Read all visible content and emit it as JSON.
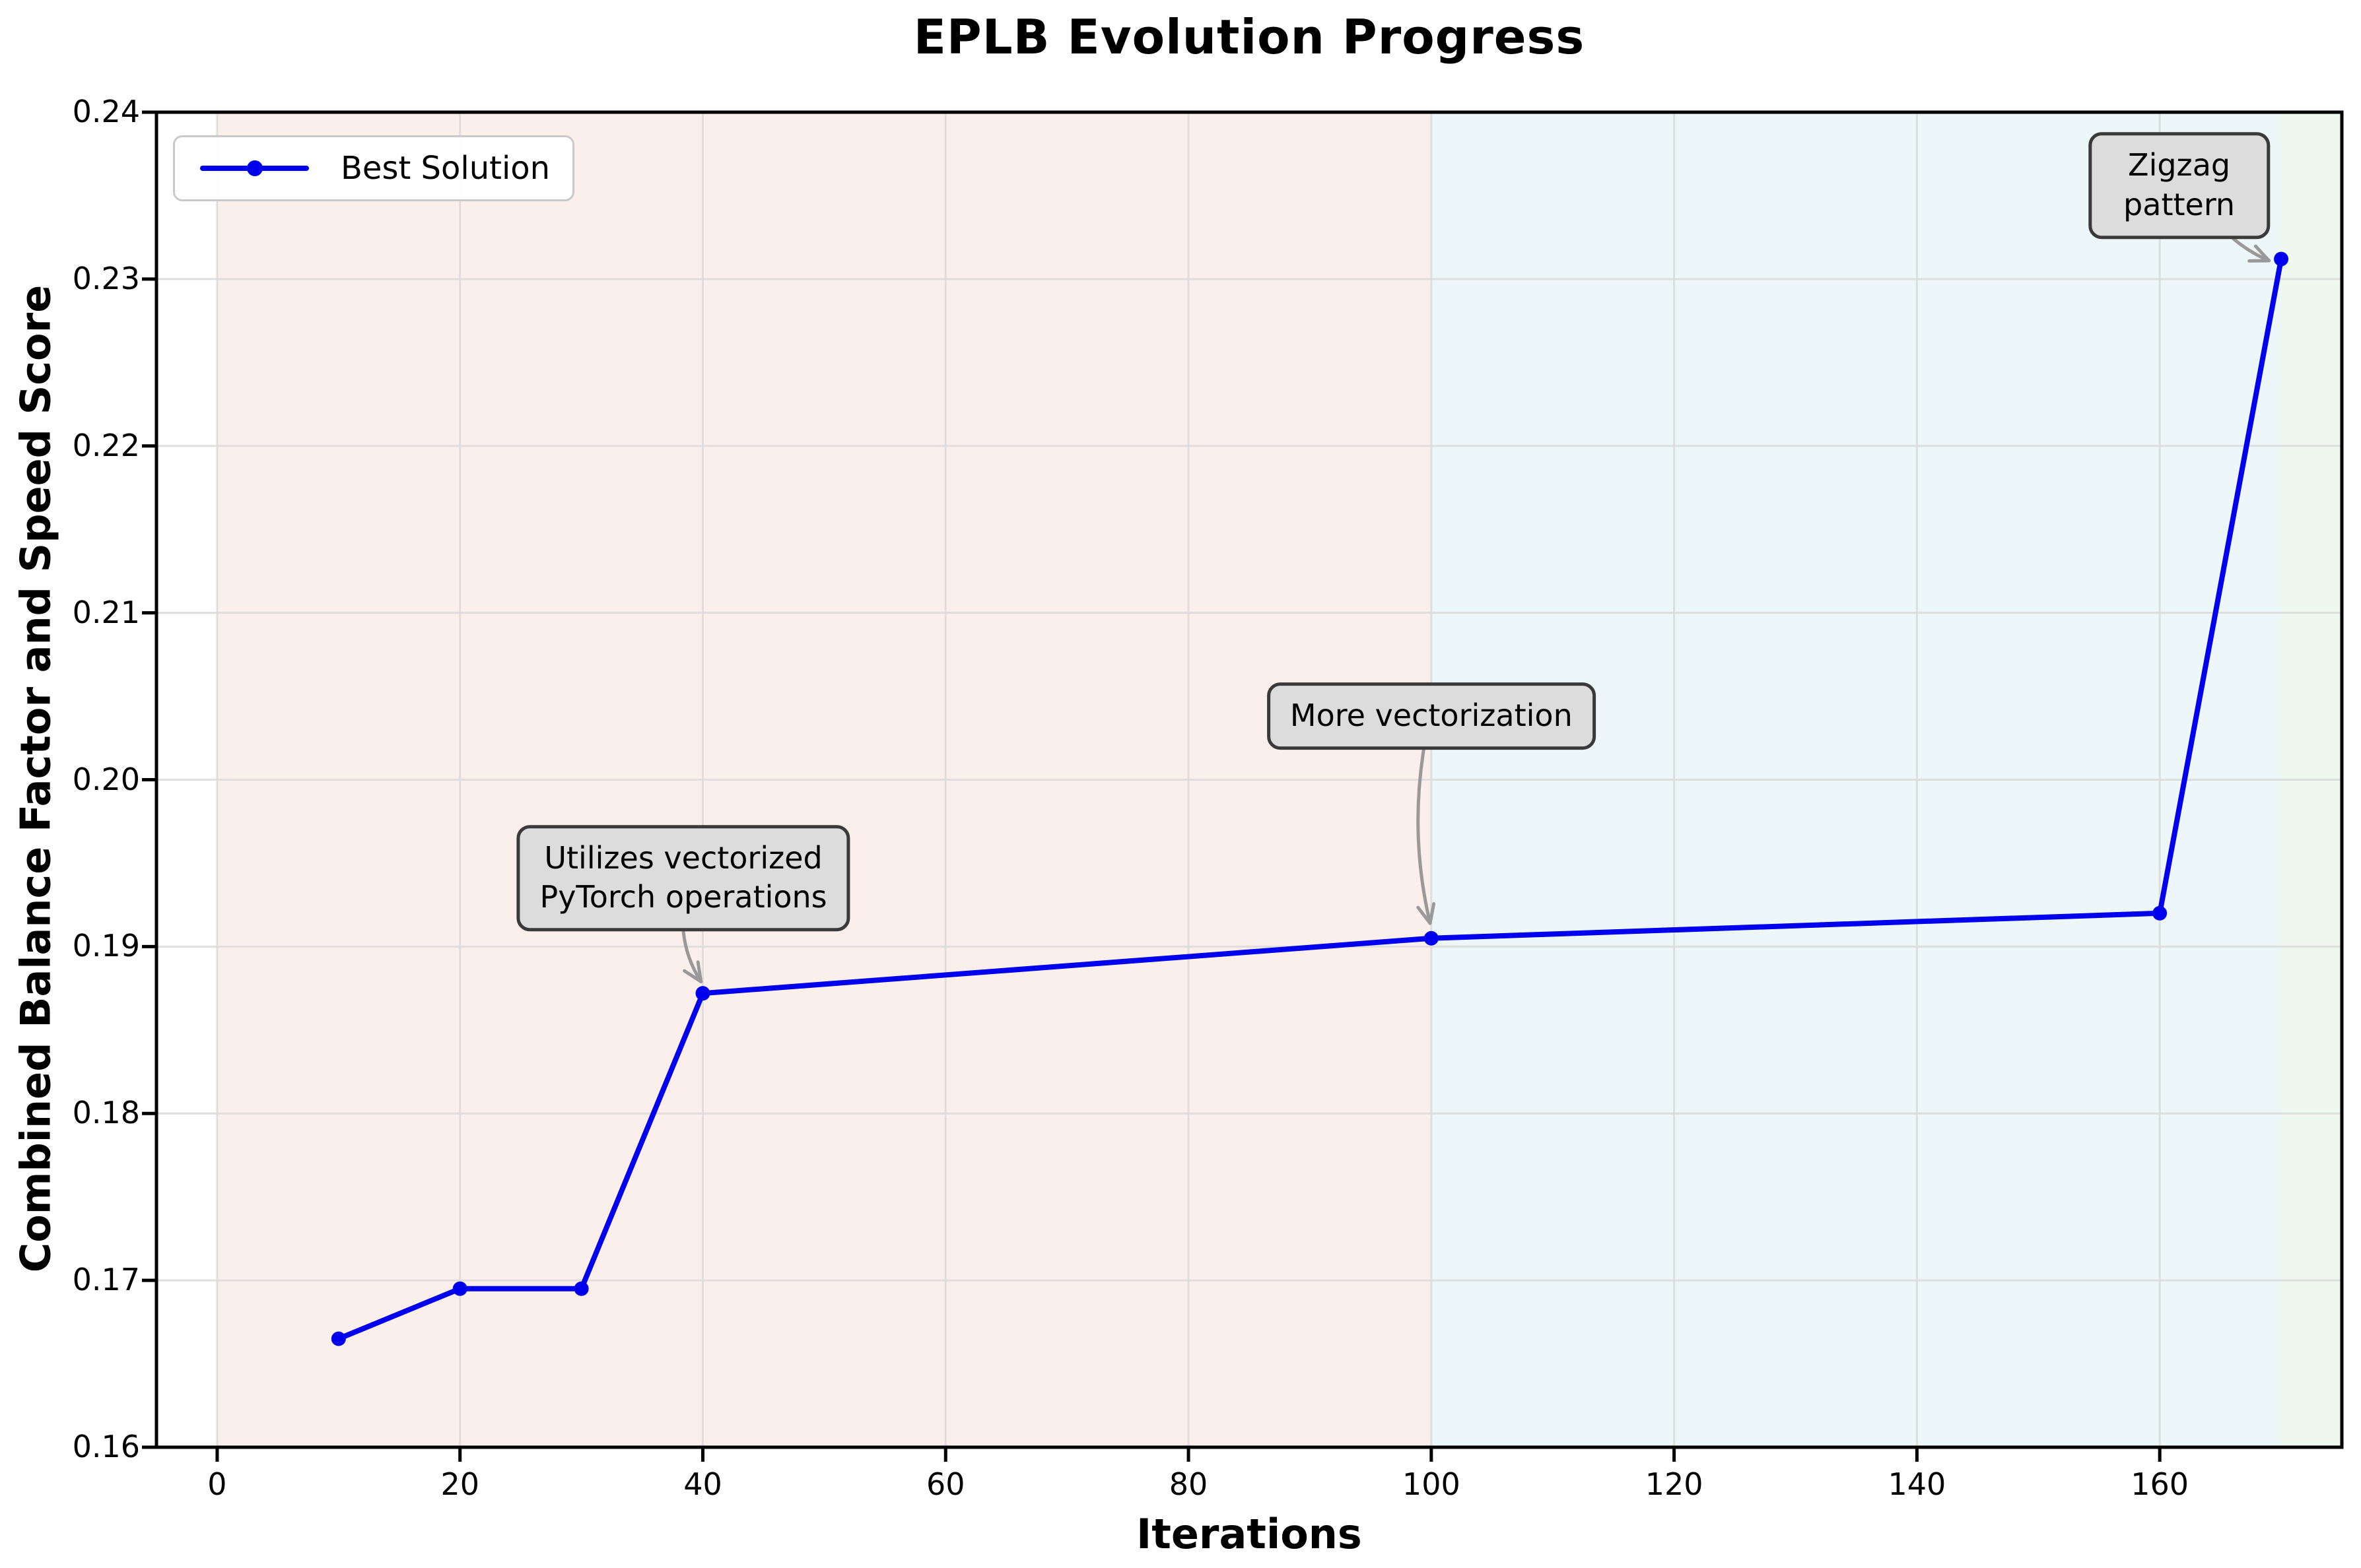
{
  "chart_data": {
    "type": "line",
    "title": "EPLB Evolution Progress",
    "xlabel": "Iterations",
    "ylabel": "Combined Balance Factor and Speed Score",
    "xlim": [
      -5,
      175
    ],
    "ylim": [
      0.16,
      0.24
    ],
    "grid": true,
    "legend_position": "upper left",
    "x_ticks": {
      "values": [
        0,
        20,
        40,
        60,
        80,
        100,
        120,
        140,
        160
      ],
      "labels": [
        "0",
        "20",
        "40",
        "60",
        "80",
        "100",
        "120",
        "140",
        "160"
      ]
    },
    "y_ticks": {
      "values": [
        0.16,
        0.17,
        0.18,
        0.19,
        0.2,
        0.21,
        0.22,
        0.23,
        0.24
      ],
      "labels": [
        "0.16",
        "0.17",
        "0.18",
        "0.19",
        "0.20",
        "0.21",
        "0.22",
        "0.23",
        "0.24"
      ]
    },
    "legend": {
      "entries": [
        {
          "label": "Best Solution"
        }
      ]
    },
    "series": [
      {
        "name": "Best Solution",
        "color": "#0000ee",
        "marker": "circle",
        "x": [
          10,
          20,
          30,
          40,
          100,
          160,
          170
        ],
        "y": [
          0.1665,
          0.1695,
          0.1695,
          0.1872,
          0.1905,
          0.192,
          0.2312
        ]
      }
    ],
    "background_regions": [
      {
        "name": "phase-1",
        "x_start": 0,
        "x_end": 100,
        "color": "#fbefeb"
      },
      {
        "name": "phase-2",
        "x_start": 100,
        "x_end": 170,
        "color": "#edf6f8"
      },
      {
        "name": "phase-3",
        "x_start": 170,
        "x_end": 175,
        "color": "#eff8ee"
      }
    ],
    "annotations": [
      {
        "text": "Utilizes vectorized\nPyTorch operations",
        "label_x": 38.4,
        "label_y": 0.1941,
        "arrow_from": [
          38.4,
          0.1909
        ],
        "arrow_to": [
          39.85,
          0.1879
        ],
        "curve": 0.12
      },
      {
        "text": "More vectorization",
        "label_x": 100.0,
        "label_y": 0.2038,
        "arrow_from": [
          99.4,
          0.2019
        ],
        "arrow_to": [
          99.9,
          0.1914
        ],
        "curve": 0.1
      },
      {
        "text": "Zigzag pattern",
        "label_x": 161.6,
        "label_y": 0.2356,
        "arrow_from": [
          164.6,
          0.2335
        ],
        "arrow_to": [
          169.0,
          0.2311
        ],
        "curve": 0.12
      }
    ]
  },
  "colors": {
    "line": "#0000ee",
    "grid": "#dcdcdc",
    "spine": "#000000",
    "tick": "#000000",
    "annotation_bg": "#dcdcdc",
    "annotation_border": "#3a3a3a",
    "arrow": "#999999",
    "legend_border": "#c9c9c9",
    "background": "#ffffff"
  }
}
